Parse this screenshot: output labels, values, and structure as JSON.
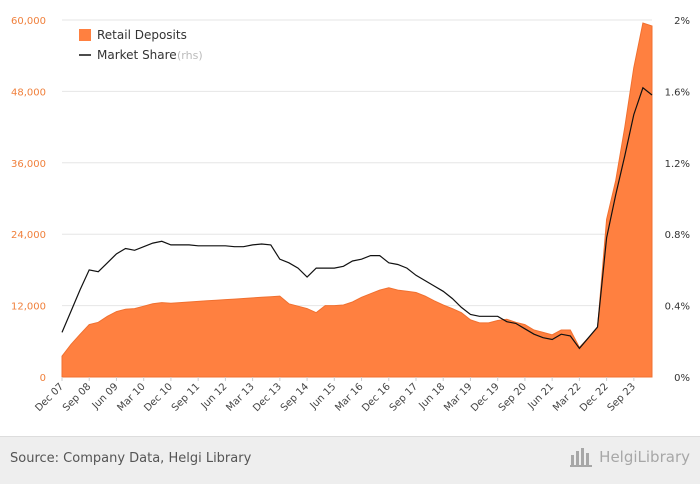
{
  "chart_data": {
    "type": "area+line",
    "legend": {
      "placement": "top-left",
      "items": [
        {
          "label": "Retail Deposits",
          "suffix": "",
          "color": "#ff8040",
          "marker": "square"
        },
        {
          "label": "Market Share",
          "suffix": "(rhs)",
          "color": "#111111",
          "marker": "line"
        }
      ]
    },
    "y_left": {
      "ticks": [
        "0",
        "12,000",
        "24,000",
        "36,000",
        "48,000",
        "60,000"
      ],
      "tick_values": [
        0,
        12000,
        24000,
        36000,
        48000,
        60000
      ],
      "range": [
        0,
        60000
      ],
      "color": "#f0803c"
    },
    "y_right": {
      "ticks": [
        "0%",
        "0.4%",
        "0.8%",
        "1.2%",
        "1.6%",
        "2%"
      ],
      "tick_values": [
        0,
        0.4,
        0.8,
        1.2,
        1.6,
        2.0
      ],
      "range": [
        0,
        2.0
      ],
      "unit": "%"
    },
    "x_ticks": [
      {
        "label": "Dec 07",
        "t": "2007-12"
      },
      {
        "label": "Sep 08",
        "t": "2008-09"
      },
      {
        "label": "Jun 09",
        "t": "2009-06"
      },
      {
        "label": "Mar 10",
        "t": "2010-03"
      },
      {
        "label": "Dec 10",
        "t": "2010-12"
      },
      {
        "label": "Sep 11",
        "t": "2011-09"
      },
      {
        "label": "Jun 12",
        "t": "2012-06"
      },
      {
        "label": "Mar 13",
        "t": "2013-03"
      },
      {
        "label": "Dec 13",
        "t": "2013-12"
      },
      {
        "label": "Sep 14",
        "t": "2014-09"
      },
      {
        "label": "Jun 15",
        "t": "2015-06"
      },
      {
        "label": "Mar 16",
        "t": "2016-03"
      },
      {
        "label": "Dec 16",
        "t": "2016-12"
      },
      {
        "label": "Sep 17",
        "t": "2017-09"
      },
      {
        "label": "Jun 18",
        "t": "2018-06"
      },
      {
        "label": "Mar 19",
        "t": "2019-03"
      },
      {
        "label": "Dec 19",
        "t": "2019-12"
      },
      {
        "label": "Sep 20",
        "t": "2020-09"
      },
      {
        "label": "Jun 21",
        "t": "2021-06"
      },
      {
        "label": "Mar 22",
        "t": "2022-03"
      },
      {
        "label": "Dec 22",
        "t": "2022-12"
      },
      {
        "label": "Sep 23",
        "t": "2023-09"
      }
    ],
    "x_range": [
      "2007-12",
      "2024-03"
    ],
    "grid": true,
    "series": [
      {
        "name": "Retail Deposits",
        "type": "area",
        "axis": "left",
        "color": "#ff8040",
        "points": [
          [
            "2007-12",
            3500
          ],
          [
            "2008-03",
            5500
          ],
          [
            "2008-06",
            7200
          ],
          [
            "2008-09",
            8800
          ],
          [
            "2008-12",
            9200
          ],
          [
            "2009-03",
            10200
          ],
          [
            "2009-06",
            11000
          ],
          [
            "2009-09",
            11400
          ],
          [
            "2009-12",
            11500
          ],
          [
            "2010-03",
            11900
          ],
          [
            "2010-06",
            12300
          ],
          [
            "2010-09",
            12500
          ],
          [
            "2010-12",
            12400
          ],
          [
            "2011-03",
            12500
          ],
          [
            "2011-06",
            12600
          ],
          [
            "2011-09",
            12700
          ],
          [
            "2011-12",
            12800
          ],
          [
            "2012-03",
            12900
          ],
          [
            "2012-06",
            13000
          ],
          [
            "2012-09",
            13100
          ],
          [
            "2012-12",
            13200
          ],
          [
            "2013-03",
            13300
          ],
          [
            "2013-06",
            13400
          ],
          [
            "2013-09",
            13500
          ],
          [
            "2013-12",
            13600
          ],
          [
            "2014-03",
            12300
          ],
          [
            "2014-06",
            11900
          ],
          [
            "2014-09",
            11500
          ],
          [
            "2014-12",
            10800
          ],
          [
            "2015-03",
            12000
          ],
          [
            "2015-06",
            12000
          ],
          [
            "2015-09",
            12100
          ],
          [
            "2015-12",
            12600
          ],
          [
            "2016-03",
            13400
          ],
          [
            "2016-06",
            14000
          ],
          [
            "2016-09",
            14600
          ],
          [
            "2016-12",
            15000
          ],
          [
            "2017-03",
            14600
          ],
          [
            "2017-06",
            14400
          ],
          [
            "2017-09",
            14200
          ],
          [
            "2017-12",
            13600
          ],
          [
            "2018-03",
            12800
          ],
          [
            "2018-06",
            12100
          ],
          [
            "2018-09",
            11500
          ],
          [
            "2018-12",
            10800
          ],
          [
            "2019-03",
            9600
          ],
          [
            "2019-06",
            9100
          ],
          [
            "2019-09",
            9100
          ],
          [
            "2019-12",
            9500
          ],
          [
            "2020-03",
            9700
          ],
          [
            "2020-06",
            9200
          ],
          [
            "2020-09",
            8800
          ],
          [
            "2020-12",
            7900
          ],
          [
            "2021-03",
            7500
          ],
          [
            "2021-06",
            7100
          ],
          [
            "2021-09",
            7900
          ],
          [
            "2021-12",
            7900
          ],
          [
            "2022-03",
            5000
          ],
          [
            "2022-06",
            6600
          ],
          [
            "2022-09",
            8200
          ],
          [
            "2022-12",
            26500
          ],
          [
            "2023-03",
            33000
          ],
          [
            "2023-06",
            42000
          ],
          [
            "2023-09",
            52000
          ],
          [
            "2023-12",
            59500
          ],
          [
            "2024-03",
            59000
          ]
        ]
      },
      {
        "name": "Market Share",
        "type": "line",
        "axis": "right",
        "color": "#111111",
        "points": [
          [
            "2007-12",
            0.25
          ],
          [
            "2008-03",
            0.37
          ],
          [
            "2008-06",
            0.49
          ],
          [
            "2008-09",
            0.6
          ],
          [
            "2008-12",
            0.59
          ],
          [
            "2009-03",
            0.64
          ],
          [
            "2009-06",
            0.69
          ],
          [
            "2009-09",
            0.72
          ],
          [
            "2009-12",
            0.71
          ],
          [
            "2010-03",
            0.73
          ],
          [
            "2010-06",
            0.75
          ],
          [
            "2010-09",
            0.76
          ],
          [
            "2010-12",
            0.74
          ],
          [
            "2011-03",
            0.74
          ],
          [
            "2011-06",
            0.74
          ],
          [
            "2011-09",
            0.735
          ],
          [
            "2011-12",
            0.735
          ],
          [
            "2012-03",
            0.735
          ],
          [
            "2012-06",
            0.735
          ],
          [
            "2012-09",
            0.73
          ],
          [
            "2012-12",
            0.73
          ],
          [
            "2013-03",
            0.74
          ],
          [
            "2013-06",
            0.745
          ],
          [
            "2013-09",
            0.74
          ],
          [
            "2013-12",
            0.66
          ],
          [
            "2014-03",
            0.64
          ],
          [
            "2014-06",
            0.61
          ],
          [
            "2014-09",
            0.56
          ],
          [
            "2014-12",
            0.61
          ],
          [
            "2015-03",
            0.61
          ],
          [
            "2015-06",
            0.61
          ],
          [
            "2015-09",
            0.62
          ],
          [
            "2015-12",
            0.65
          ],
          [
            "2016-03",
            0.66
          ],
          [
            "2016-06",
            0.68
          ],
          [
            "2016-09",
            0.68
          ],
          [
            "2016-12",
            0.64
          ],
          [
            "2017-03",
            0.63
          ],
          [
            "2017-06",
            0.61
          ],
          [
            "2017-09",
            0.57
          ],
          [
            "2017-12",
            0.54
          ],
          [
            "2018-03",
            0.51
          ],
          [
            "2018-06",
            0.48
          ],
          [
            "2018-09",
            0.44
          ],
          [
            "2018-12",
            0.39
          ],
          [
            "2019-03",
            0.35
          ],
          [
            "2019-06",
            0.34
          ],
          [
            "2019-09",
            0.34
          ],
          [
            "2019-12",
            0.34
          ],
          [
            "2020-03",
            0.31
          ],
          [
            "2020-06",
            0.3
          ],
          [
            "2020-09",
            0.27
          ],
          [
            "2020-12",
            0.24
          ],
          [
            "2021-03",
            0.22
          ],
          [
            "2021-06",
            0.21
          ],
          [
            "2021-09",
            0.24
          ],
          [
            "2021-12",
            0.23
          ],
          [
            "2022-03",
            0.16
          ],
          [
            "2022-06",
            0.22
          ],
          [
            "2022-09",
            0.28
          ],
          [
            "2022-12",
            0.78
          ],
          [
            "2023-03",
            1.02
          ],
          [
            "2023-06",
            1.24
          ],
          [
            "2023-09",
            1.47
          ],
          [
            "2023-12",
            1.62
          ],
          [
            "2024-03",
            1.58
          ]
        ]
      }
    ]
  },
  "footer": {
    "source": "Source: Company Data, Helgi Library",
    "brand": "HelgiLibrary"
  },
  "colors": {
    "deposits": "#ff8040",
    "share": "#111111",
    "grid": "#e6e6e6",
    "footer_bg": "#eeeeee"
  }
}
